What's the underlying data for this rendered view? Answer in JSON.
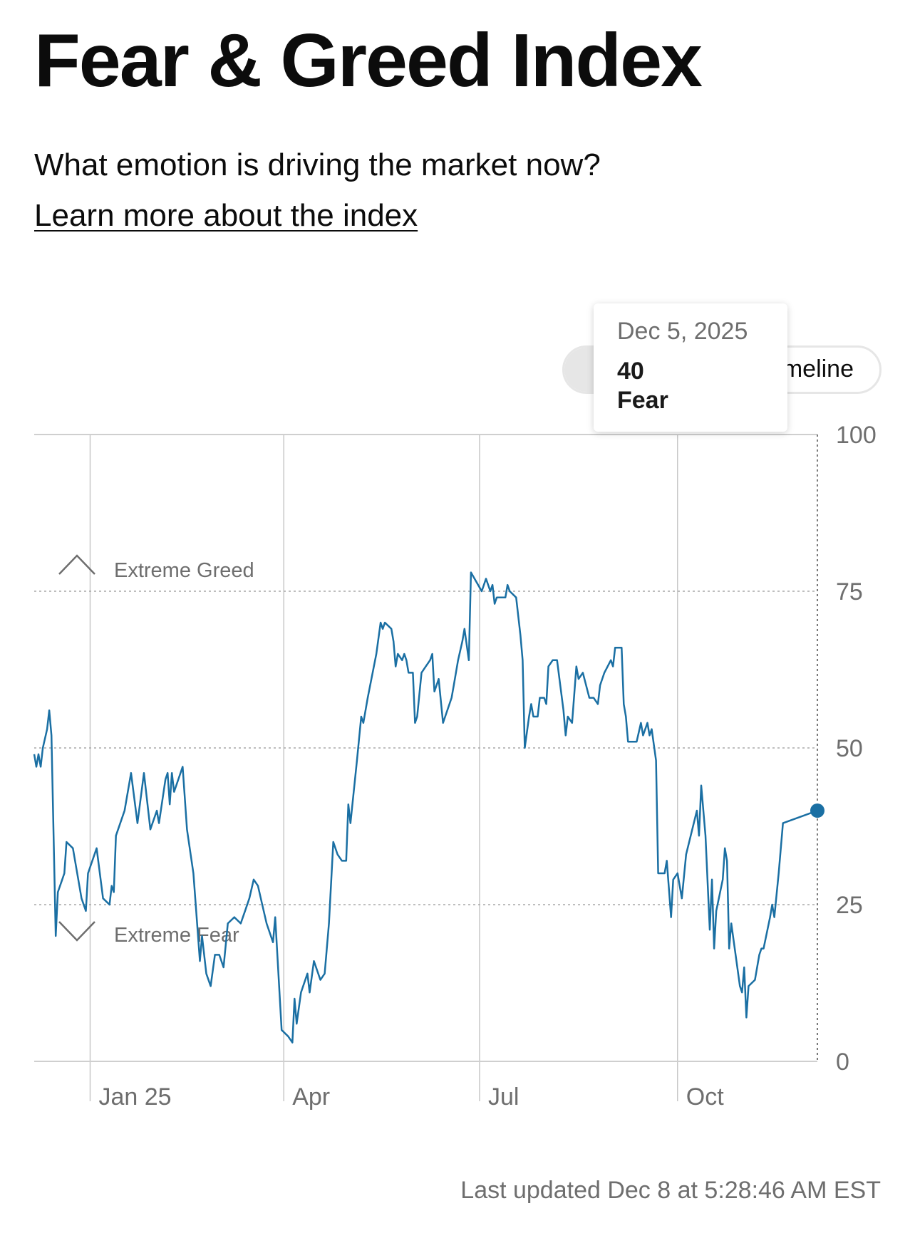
{
  "header": {
    "title": "Fear & Greed Index",
    "subtitle": "What emotion is driving the market now?",
    "learn_more": "Learn more about the index"
  },
  "toggle": {
    "active_label": "",
    "other_label": "Timeline"
  },
  "tooltip": {
    "date": "Dec 5, 2025",
    "value": "40",
    "rating": "Fear"
  },
  "footer": {
    "last_updated": "Last updated Dec 8 at 5:28:46 AM EST"
  },
  "colors": {
    "line": "#1a6fa3",
    "grid": "#c8c8c8",
    "axis_text": "#6e6e6e"
  },
  "chart_data": {
    "type": "line",
    "title": "",
    "xlabel": "",
    "ylabel": "",
    "ylim": [
      0,
      100
    ],
    "yticks": [
      0,
      25,
      50,
      75,
      100
    ],
    "xlim": [
      "2024-12-06",
      "2025-12-05"
    ],
    "xticks": [
      {
        "date": "2025-01-01",
        "label": "Jan 25"
      },
      {
        "date": "2025-04-01",
        "label": "Apr"
      },
      {
        "date": "2025-07-01",
        "label": "Jul"
      },
      {
        "date": "2025-10-01",
        "label": "Oct"
      }
    ],
    "zones": [
      {
        "label": "Extreme Greed",
        "threshold": 75,
        "icon": "chevron-up-icon"
      },
      {
        "label": "Extreme Fear",
        "threshold": 25,
        "icon": "chevron-down-icon"
      }
    ],
    "grid": true,
    "highlight": {
      "date": "2025-12-05",
      "value": 40
    },
    "series": [
      {
        "points": [
          [
            "2024-12-06",
            49
          ],
          [
            "2024-12-07",
            47
          ],
          [
            "2024-12-08",
            49
          ],
          [
            "2024-12-09",
            47
          ],
          [
            "2024-12-10",
            50
          ],
          [
            "2024-12-12",
            53
          ],
          [
            "2024-12-13",
            56
          ],
          [
            "2024-12-14",
            52
          ],
          [
            "2024-12-16",
            20
          ],
          [
            "2024-12-17",
            27
          ],
          [
            "2024-12-19",
            29
          ],
          [
            "2024-12-20",
            30
          ],
          [
            "2024-12-21",
            35
          ],
          [
            "2024-12-24",
            34
          ],
          [
            "2024-12-28",
            26
          ],
          [
            "2024-12-30",
            24
          ],
          [
            "2024-12-31",
            30
          ],
          [
            "2025-01-04",
            34
          ],
          [
            "2025-01-07",
            26
          ],
          [
            "2025-01-10",
            25
          ],
          [
            "2025-01-11",
            28
          ],
          [
            "2025-01-12",
            27
          ],
          [
            "2025-01-13",
            36
          ],
          [
            "2025-01-17",
            40
          ],
          [
            "2025-01-20",
            46
          ],
          [
            "2025-01-23",
            38
          ],
          [
            "2025-01-26",
            46
          ],
          [
            "2025-01-29",
            37
          ],
          [
            "2025-02-01",
            40
          ],
          [
            "2025-02-02",
            38
          ],
          [
            "2025-02-05",
            45
          ],
          [
            "2025-02-06",
            46
          ],
          [
            "2025-02-07",
            41
          ],
          [
            "2025-02-08",
            46
          ],
          [
            "2025-02-09",
            43
          ],
          [
            "2025-02-13",
            47
          ],
          [
            "2025-02-15",
            37
          ],
          [
            "2025-02-18",
            30
          ],
          [
            "2025-02-21",
            16
          ],
          [
            "2025-02-22",
            20
          ],
          [
            "2025-02-24",
            14
          ],
          [
            "2025-02-26",
            12
          ],
          [
            "2025-02-28",
            17
          ],
          [
            "2025-03-02",
            17
          ],
          [
            "2025-03-04",
            15
          ],
          [
            "2025-03-06",
            22
          ],
          [
            "2025-03-09",
            23
          ],
          [
            "2025-03-12",
            22
          ],
          [
            "2025-03-14",
            24
          ],
          [
            "2025-03-16",
            26
          ],
          [
            "2025-03-18",
            29
          ],
          [
            "2025-03-20",
            28
          ],
          [
            "2025-03-22",
            25
          ],
          [
            "2025-03-24",
            22
          ],
          [
            "2025-03-27",
            19
          ],
          [
            "2025-03-28",
            23
          ],
          [
            "2025-03-31",
            5
          ],
          [
            "2025-04-03",
            4
          ],
          [
            "2025-04-05",
            3
          ],
          [
            "2025-04-06",
            10
          ],
          [
            "2025-04-07",
            6
          ],
          [
            "2025-04-09",
            11
          ],
          [
            "2025-04-12",
            14
          ],
          [
            "2025-04-13",
            11
          ],
          [
            "2025-04-15",
            16
          ],
          [
            "2025-04-18",
            13
          ],
          [
            "2025-04-20",
            14
          ],
          [
            "2025-04-22",
            22
          ],
          [
            "2025-04-24",
            35
          ],
          [
            "2025-04-26",
            33
          ],
          [
            "2025-04-28",
            32
          ],
          [
            "2025-04-30",
            32
          ],
          [
            "2025-05-01",
            41
          ],
          [
            "2025-05-02",
            38
          ],
          [
            "2025-05-05",
            48
          ],
          [
            "2025-05-07",
            55
          ],
          [
            "2025-05-08",
            54
          ],
          [
            "2025-05-10",
            58
          ],
          [
            "2025-05-14",
            65
          ],
          [
            "2025-05-16",
            70
          ],
          [
            "2025-05-17",
            69
          ],
          [
            "2025-05-18",
            70
          ],
          [
            "2025-05-21",
            69
          ],
          [
            "2025-05-22",
            67
          ],
          [
            "2025-05-23",
            63
          ],
          [
            "2025-05-24",
            65
          ],
          [
            "2025-05-26",
            64
          ],
          [
            "2025-05-27",
            65
          ],
          [
            "2025-05-28",
            64
          ],
          [
            "2025-05-29",
            62
          ],
          [
            "2025-05-31",
            62
          ],
          [
            "2025-06-01",
            54
          ],
          [
            "2025-06-02",
            55
          ],
          [
            "2025-06-04",
            62
          ],
          [
            "2025-06-06",
            63
          ],
          [
            "2025-06-08",
            64
          ],
          [
            "2025-06-09",
            65
          ],
          [
            "2025-06-10",
            59
          ],
          [
            "2025-06-12",
            61
          ],
          [
            "2025-06-14",
            54
          ],
          [
            "2025-06-15",
            55
          ],
          [
            "2025-06-18",
            58
          ],
          [
            "2025-06-19",
            60
          ],
          [
            "2025-06-21",
            64
          ],
          [
            "2025-06-23",
            67
          ],
          [
            "2025-06-24",
            69
          ],
          [
            "2025-06-26",
            64
          ],
          [
            "2025-06-27",
            78
          ],
          [
            "2025-07-02",
            75
          ],
          [
            "2025-07-04",
            77
          ],
          [
            "2025-07-06",
            75
          ],
          [
            "2025-07-07",
            76
          ],
          [
            "2025-07-08",
            73
          ],
          [
            "2025-07-09",
            74
          ],
          [
            "2025-07-13",
            74
          ],
          [
            "2025-07-14",
            76
          ],
          [
            "2025-07-15",
            75
          ],
          [
            "2025-07-18",
            74
          ],
          [
            "2025-07-20",
            68
          ],
          [
            "2025-07-21",
            64
          ],
          [
            "2025-07-22",
            50
          ],
          [
            "2025-07-24",
            55
          ],
          [
            "2025-07-25",
            57
          ],
          [
            "2025-07-26",
            55
          ],
          [
            "2025-07-28",
            55
          ],
          [
            "2025-07-29",
            58
          ],
          [
            "2025-07-31",
            58
          ],
          [
            "2025-08-01",
            57
          ],
          [
            "2025-08-02",
            63
          ],
          [
            "2025-08-04",
            64
          ],
          [
            "2025-08-06",
            64
          ],
          [
            "2025-08-09",
            56
          ],
          [
            "2025-08-10",
            52
          ],
          [
            "2025-08-11",
            55
          ],
          [
            "2025-08-13",
            54
          ],
          [
            "2025-08-15",
            63
          ],
          [
            "2025-08-16",
            61
          ],
          [
            "2025-08-18",
            62
          ],
          [
            "2025-08-21",
            58
          ],
          [
            "2025-08-23",
            58
          ],
          [
            "2025-08-25",
            57
          ],
          [
            "2025-08-26",
            60
          ],
          [
            "2025-08-28",
            62
          ],
          [
            "2025-08-31",
            64
          ],
          [
            "2025-09-01",
            63
          ],
          [
            "2025-09-02",
            66
          ],
          [
            "2025-09-04",
            66
          ],
          [
            "2025-09-05",
            66
          ],
          [
            "2025-09-06",
            57
          ],
          [
            "2025-09-07",
            55
          ],
          [
            "2025-09-08",
            51
          ],
          [
            "2025-09-10",
            51
          ],
          [
            "2025-09-12",
            51
          ],
          [
            "2025-09-14",
            54
          ],
          [
            "2025-09-15",
            52
          ],
          [
            "2025-09-17",
            54
          ],
          [
            "2025-09-18",
            52
          ],
          [
            "2025-09-19",
            53
          ],
          [
            "2025-09-21",
            48
          ],
          [
            "2025-09-22",
            30
          ],
          [
            "2025-09-25",
            30
          ],
          [
            "2025-09-26",
            32
          ],
          [
            "2025-09-28",
            23
          ],
          [
            "2025-09-29",
            29
          ],
          [
            "2025-10-01",
            30
          ],
          [
            "2025-10-03",
            26
          ],
          [
            "2025-10-05",
            33
          ],
          [
            "2025-10-10",
            40
          ],
          [
            "2025-10-11",
            36
          ],
          [
            "2025-10-12",
            44
          ],
          [
            "2025-10-14",
            36
          ],
          [
            "2025-10-16",
            21
          ],
          [
            "2025-10-17",
            29
          ],
          [
            "2025-10-18",
            18
          ],
          [
            "2025-10-19",
            24
          ],
          [
            "2025-10-22",
            29
          ],
          [
            "2025-10-23",
            34
          ],
          [
            "2025-10-24",
            32
          ],
          [
            "2025-10-25",
            18
          ],
          [
            "2025-10-26",
            22
          ],
          [
            "2025-10-30",
            12
          ],
          [
            "2025-10-31",
            11
          ],
          [
            "2025-11-01",
            15
          ],
          [
            "2025-11-02",
            7
          ],
          [
            "2025-11-03",
            12
          ],
          [
            "2025-11-06",
            13
          ],
          [
            "2025-11-08",
            17
          ],
          [
            "2025-11-09",
            18
          ],
          [
            "2025-11-10",
            18
          ],
          [
            "2025-11-13",
            23
          ],
          [
            "2025-11-14",
            25
          ],
          [
            "2025-11-15",
            23
          ],
          [
            "2025-11-17",
            30
          ],
          [
            "2025-11-19",
            38
          ],
          [
            "2025-12-05",
            40
          ]
        ]
      }
    ]
  }
}
